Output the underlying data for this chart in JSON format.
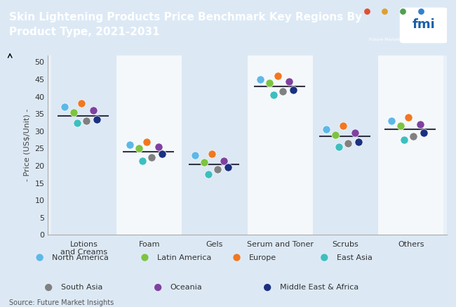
{
  "title": "Skin Lightening Products Price Benchmark Key Regions By\nProduct Type, 2021-2031",
  "ylabel": "- Price (US$/Unit) -",
  "source": "Source: Future Market Insights",
  "categories": [
    "Lotions\nand Creams",
    "Foam",
    "Gels",
    "Serum and Toner",
    "Scrubs",
    "Others"
  ],
  "ylim": [
    0,
    52
  ],
  "yticks": [
    0.0,
    5.0,
    10.0,
    15.0,
    20.0,
    25.0,
    30.0,
    35.0,
    40.0,
    45.0,
    50.0
  ],
  "bg_color": "#dce9f5",
  "plot_bg_light": "#e8f0f8",
  "plot_bg_white": "#f0f4f9",
  "band_shaded": "#dce8f4",
  "regions": [
    "North America",
    "Latin America",
    "Europe",
    "East Asia",
    "South Asia",
    "Oceania",
    "Middle East & Africa"
  ],
  "region_colors": [
    "#5db8e8",
    "#7dc441",
    "#f07820",
    "#3dbfbf",
    "#808080",
    "#8040a0",
    "#1a3080"
  ],
  "mean_line_color": "#333344",
  "data": {
    "Lotions\nand Creams": {
      "North America": 37.0,
      "Latin America": 35.5,
      "Europe": 38.0,
      "East Asia": 32.5,
      "South Asia": 33.0,
      "Oceania": 36.0,
      "Middle East & Africa": 33.5,
      "mean": 34.5
    },
    "Foam": {
      "North America": 26.0,
      "Latin America": 25.0,
      "Europe": 27.0,
      "East Asia": 21.5,
      "South Asia": 22.5,
      "Oceania": 25.5,
      "Middle East & Africa": 23.5,
      "mean": 24.0
    },
    "Gels": {
      "North America": 23.0,
      "Latin America": 21.0,
      "Europe": 23.5,
      "East Asia": 17.5,
      "South Asia": 19.0,
      "Oceania": 21.5,
      "Middle East & Africa": 19.5,
      "mean": 20.5
    },
    "Serum and Toner": {
      "North America": 45.0,
      "Latin America": 44.0,
      "Europe": 46.0,
      "East Asia": 40.5,
      "South Asia": 41.5,
      "Oceania": 44.5,
      "Middle East & Africa": 42.0,
      "mean": 43.0
    },
    "Scrubs": {
      "North America": 30.5,
      "Latin America": 29.0,
      "Europe": 31.5,
      "East Asia": 25.5,
      "South Asia": 26.5,
      "Oceania": 29.5,
      "Middle East & Africa": 27.0,
      "mean": 28.5
    },
    "Others": {
      "North America": 33.0,
      "Latin America": 31.5,
      "Europe": 34.0,
      "East Asia": 27.5,
      "South Asia": 28.5,
      "Oceania": 32.0,
      "Middle East & Africa": 29.5,
      "mean": 30.5
    }
  },
  "title_bg": "#1a5fa8",
  "title_color": "#ffffff",
  "title_fontsize": 11,
  "legend_items_row1": [
    [
      "North America",
      "#5db8e8"
    ],
    [
      "Latin America",
      "#7dc441"
    ],
    [
      "Europe",
      "#f07820"
    ],
    [
      "East Asia",
      "#3dbfbf"
    ]
  ],
  "legend_items_row2": [
    [
      "South Asia",
      "#808080"
    ],
    [
      "Oceania",
      "#8040a0"
    ],
    [
      "Middle East & Africa",
      "#1a3080"
    ]
  ]
}
